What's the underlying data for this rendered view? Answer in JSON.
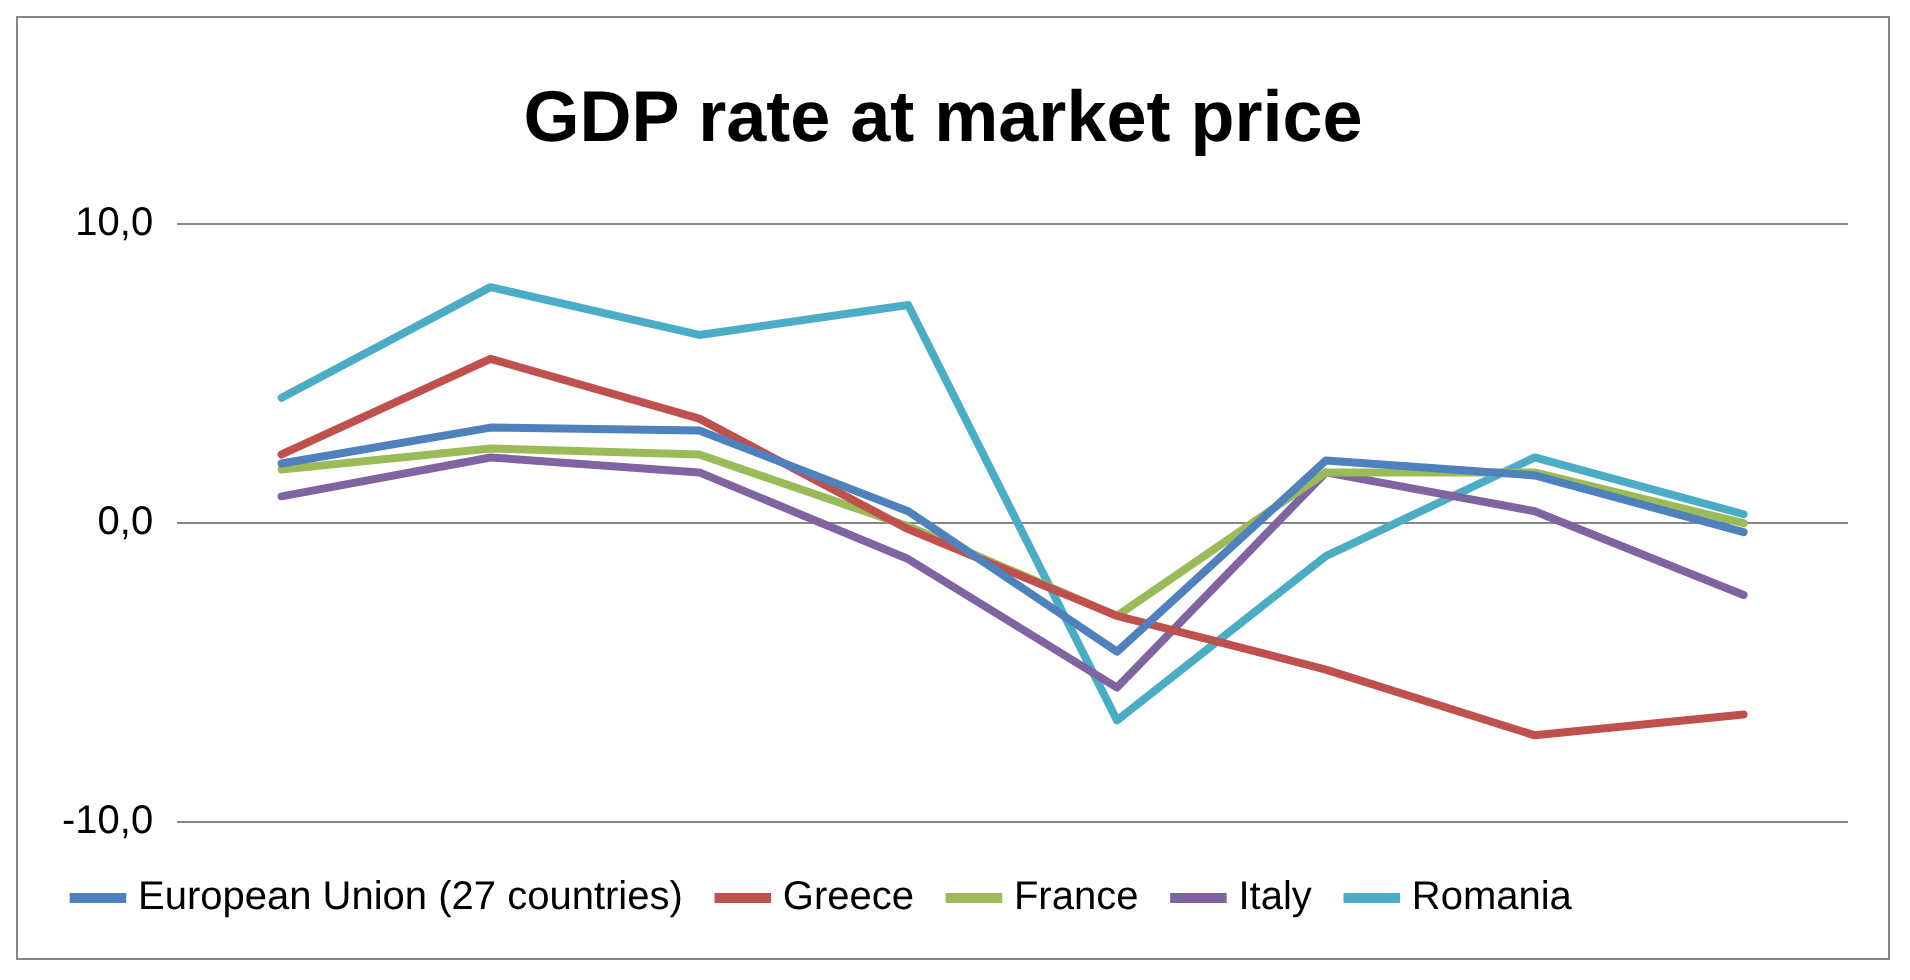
{
  "chart_data": {
    "type": "line",
    "title": "GDP rate at market price",
    "categories": [
      null,
      null,
      null,
      null,
      null,
      null,
      null,
      null
    ],
    "series": [
      {
        "name": "European Union (27 countries)",
        "color": "#4f81bd",
        "values": [
          2.0,
          3.2,
          3.1,
          0.4,
          -4.3,
          2.1,
          1.6,
          -0.3
        ]
      },
      {
        "name": "Greece",
        "color": "#c0504d",
        "values": [
          2.3,
          5.5,
          3.5,
          -0.2,
          -3.1,
          -4.9,
          -7.1,
          -6.4
        ]
      },
      {
        "name": "France",
        "color": "#9bbb59",
        "values": [
          1.8,
          2.5,
          2.3,
          -0.1,
          -3.1,
          1.7,
          1.7,
          0.0
        ]
      },
      {
        "name": "Italy",
        "color": "#8064a2",
        "values": [
          0.9,
          2.2,
          1.7,
          -1.2,
          -5.5,
          1.7,
          0.4,
          -2.4
        ]
      },
      {
        "name": "Romania",
        "color": "#4bacc6",
        "values": [
          4.2,
          7.9,
          6.3,
          7.3,
          -6.6,
          -1.1,
          2.2,
          0.3
        ]
      }
    ],
    "ylim": [
      -10,
      10
    ],
    "yticks": [
      {
        "value": -10,
        "label": "-10,0"
      },
      {
        "value": 0,
        "label": "0,0"
      },
      {
        "value": 10,
        "label": "10,0"
      }
    ],
    "grid": "y",
    "legend": "bottom",
    "tick_labels": "y",
    "marker": "none",
    "line_style": "solid"
  }
}
